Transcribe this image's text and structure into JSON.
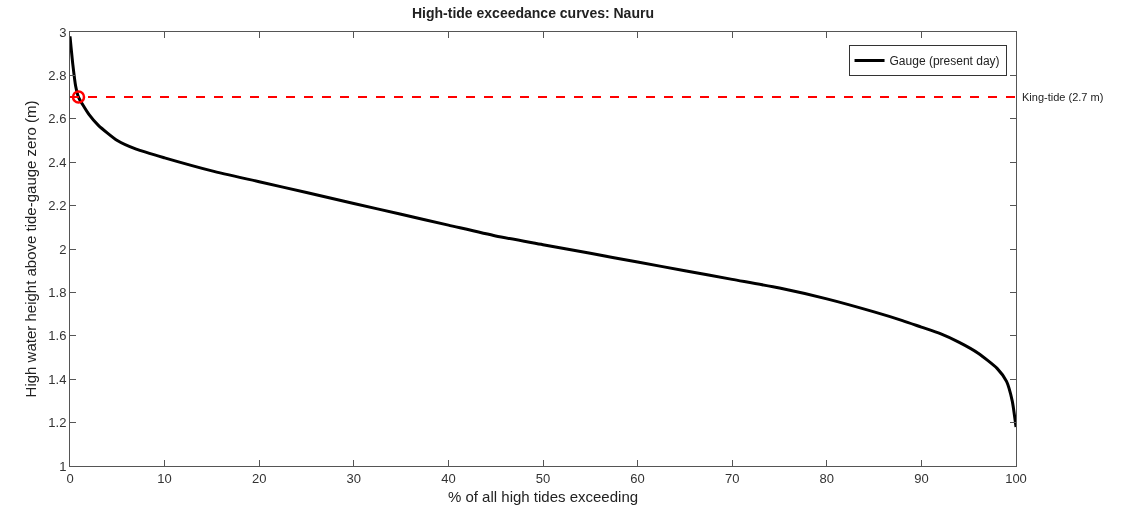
{
  "chart_data": {
    "type": "line",
    "title": "High-tide exceedance curves: Nauru",
    "xlabel": "% of all high tides exceeding",
    "ylabel": "High water height above tide-gauge zero (m)",
    "xlim": [
      0,
      100
    ],
    "xticks": [
      0,
      10,
      20,
      30,
      40,
      50,
      60,
      70,
      80,
      90,
      100
    ],
    "ylim": [
      1,
      3
    ],
    "yticks": [
      1,
      1.2,
      1.4,
      1.6,
      1.8,
      2,
      2.2,
      2.4,
      2.6,
      2.8,
      3
    ],
    "series": [
      {
        "name": "Gauge (present day)",
        "color": "#000000",
        "line_style": "solid",
        "marker": "none",
        "x": [
          0,
          0.3,
          0.6,
          0.9,
          2,
          3,
          5,
          7,
          10,
          15,
          20,
          25,
          30,
          35,
          40,
          45,
          50,
          55,
          60,
          65,
          70,
          75,
          80,
          85,
          88,
          90,
          92,
          94,
          96,
          98,
          99,
          99.6,
          100
        ],
        "values": [
          2.98,
          2.85,
          2.75,
          2.7,
          2.62,
          2.57,
          2.5,
          2.46,
          2.42,
          2.36,
          2.31,
          2.26,
          2.21,
          2.16,
          2.11,
          2.06,
          2.02,
          1.98,
          1.94,
          1.9,
          1.86,
          1.82,
          1.77,
          1.71,
          1.67,
          1.64,
          1.61,
          1.57,
          1.52,
          1.45,
          1.39,
          1.3,
          1.18
        ]
      },
      {
        "type": "scatter",
        "color": "#ff0000",
        "marker": "circle",
        "x": [
          0.9
        ],
        "values": [
          2.7
        ]
      }
    ],
    "ref_lines": [
      {
        "axis": "y",
        "value": 2.7,
        "label": "King-tide (2.7 m)",
        "color": "#ff0000",
        "line_style": "dashed"
      }
    ],
    "grid": false,
    "legend": "top right"
  }
}
